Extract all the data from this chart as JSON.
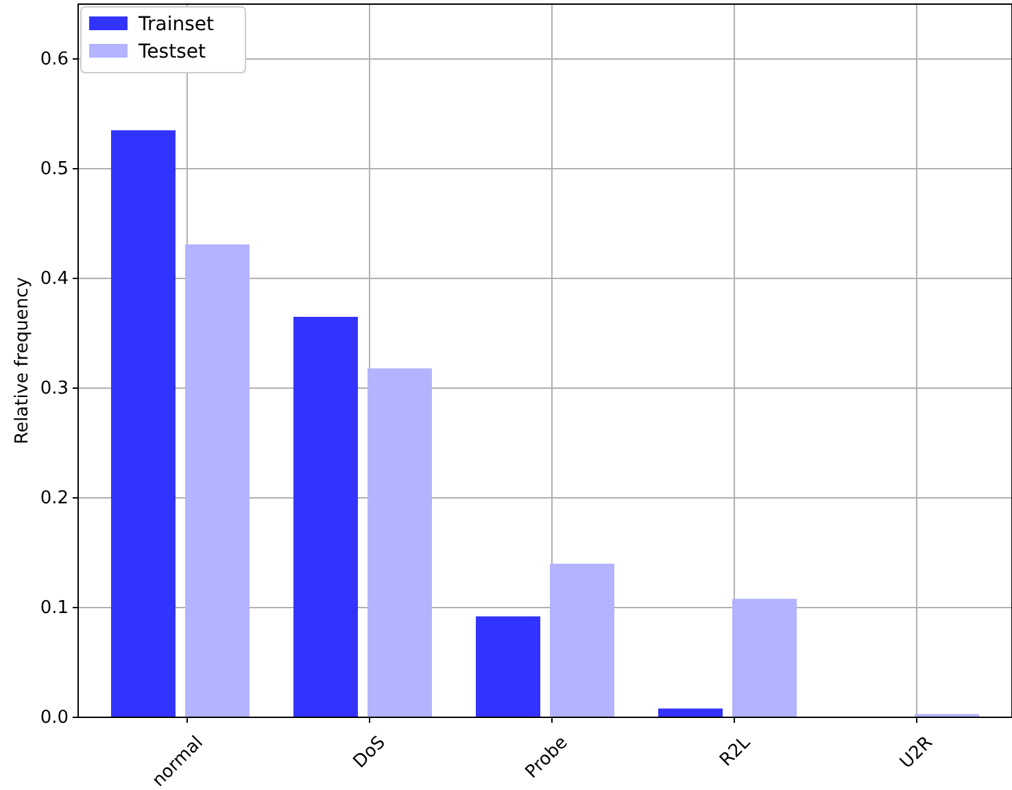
{
  "chart_data": {
    "type": "bar",
    "ylabel": "Relative frequency",
    "categories": [
      "normal",
      "DoS",
      "Probe",
      "R2L",
      "U2R"
    ],
    "series": [
      {
        "name": "Trainset",
        "color": "#3333ff",
        "values": [
          0.535,
          0.365,
          0.092,
          0.008,
          null
        ]
      },
      {
        "name": "Testset",
        "color": "#b3b3ff",
        "values": [
          0.431,
          0.318,
          0.14,
          0.108,
          0.003
        ]
      }
    ],
    "ylim": [
      0,
      0.65
    ],
    "yticks": [
      {
        "value": 0,
        "label": "0.0"
      },
      0.1,
      0.2,
      0.3,
      0.4,
      0.5,
      0.6
    ],
    "grid": true,
    "legend": "top left"
  }
}
